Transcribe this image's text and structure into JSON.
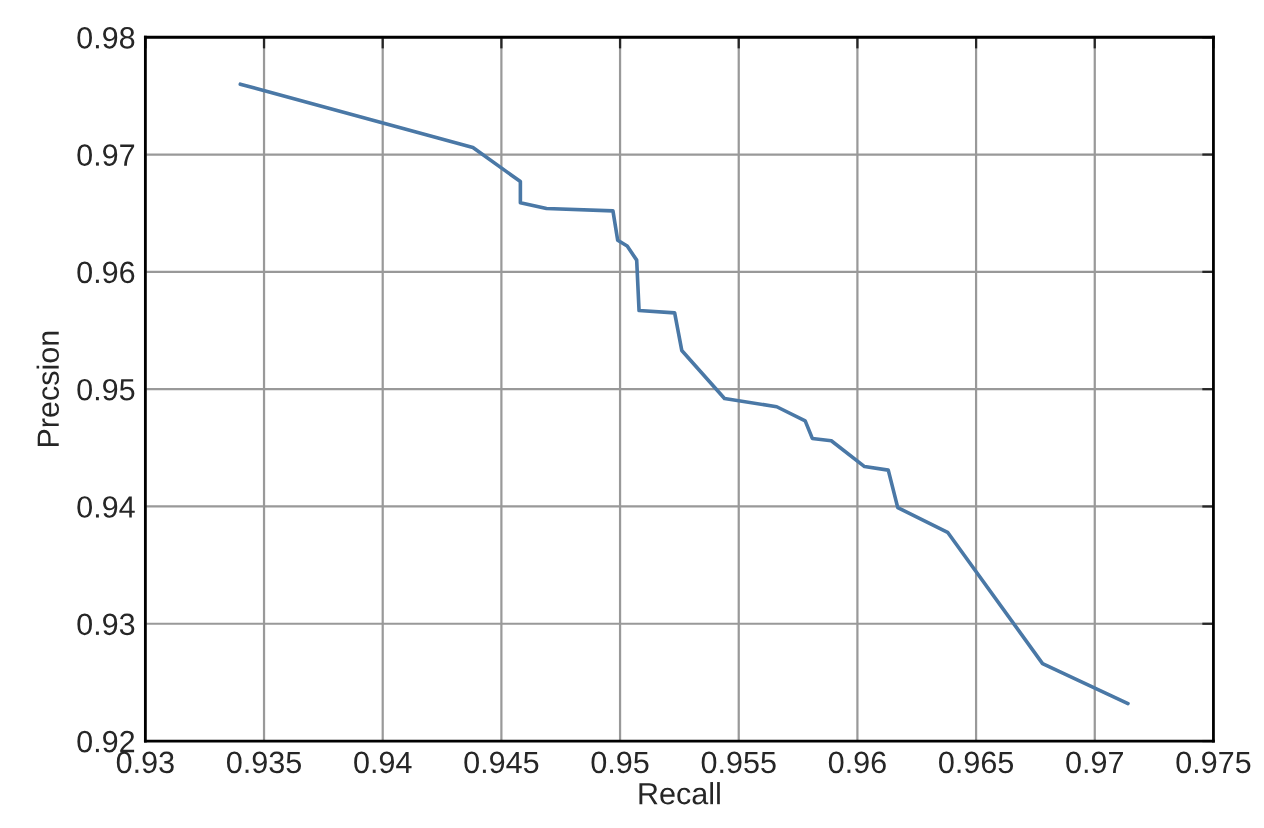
{
  "chart_data": {
    "type": "line",
    "xlabel": "Recall",
    "ylabel": "Precsion",
    "series": [
      {
        "color": "#4a78a6",
        "x": [
          0.934,
          0.9438,
          0.9458,
          0.9458,
          0.9469,
          0.9497,
          0.9499,
          0.9503,
          0.9507,
          0.9508,
          0.9523,
          0.9526,
          0.9544,
          0.9566,
          0.9578,
          0.9581,
          0.9589,
          0.9603,
          0.9613,
          0.9617,
          0.9638,
          0.9678,
          0.9714
        ],
        "values": [
          0.976,
          0.9706,
          0.9677,
          0.9659,
          0.9654,
          0.9652,
          0.9627,
          0.9622,
          0.961,
          0.9567,
          0.9565,
          0.9533,
          0.9492,
          0.9485,
          0.9473,
          0.9458,
          0.9456,
          0.9434,
          0.9431,
          0.9399,
          0.9378,
          0.9266,
          0.9232
        ]
      }
    ],
    "xlim": [
      0.93,
      0.975
    ],
    "xticks": [
      0.93,
      0.935,
      0.94,
      0.945,
      0.95,
      0.955,
      0.96,
      0.965,
      0.97,
      0.975
    ],
    "ylim": [
      0.92,
      0.98
    ],
    "yticks": [
      0.92,
      0.93,
      0.94,
      0.95,
      0.96,
      0.97,
      0.98
    ],
    "grid": true,
    "marker": "none",
    "line_style": "solid"
  }
}
